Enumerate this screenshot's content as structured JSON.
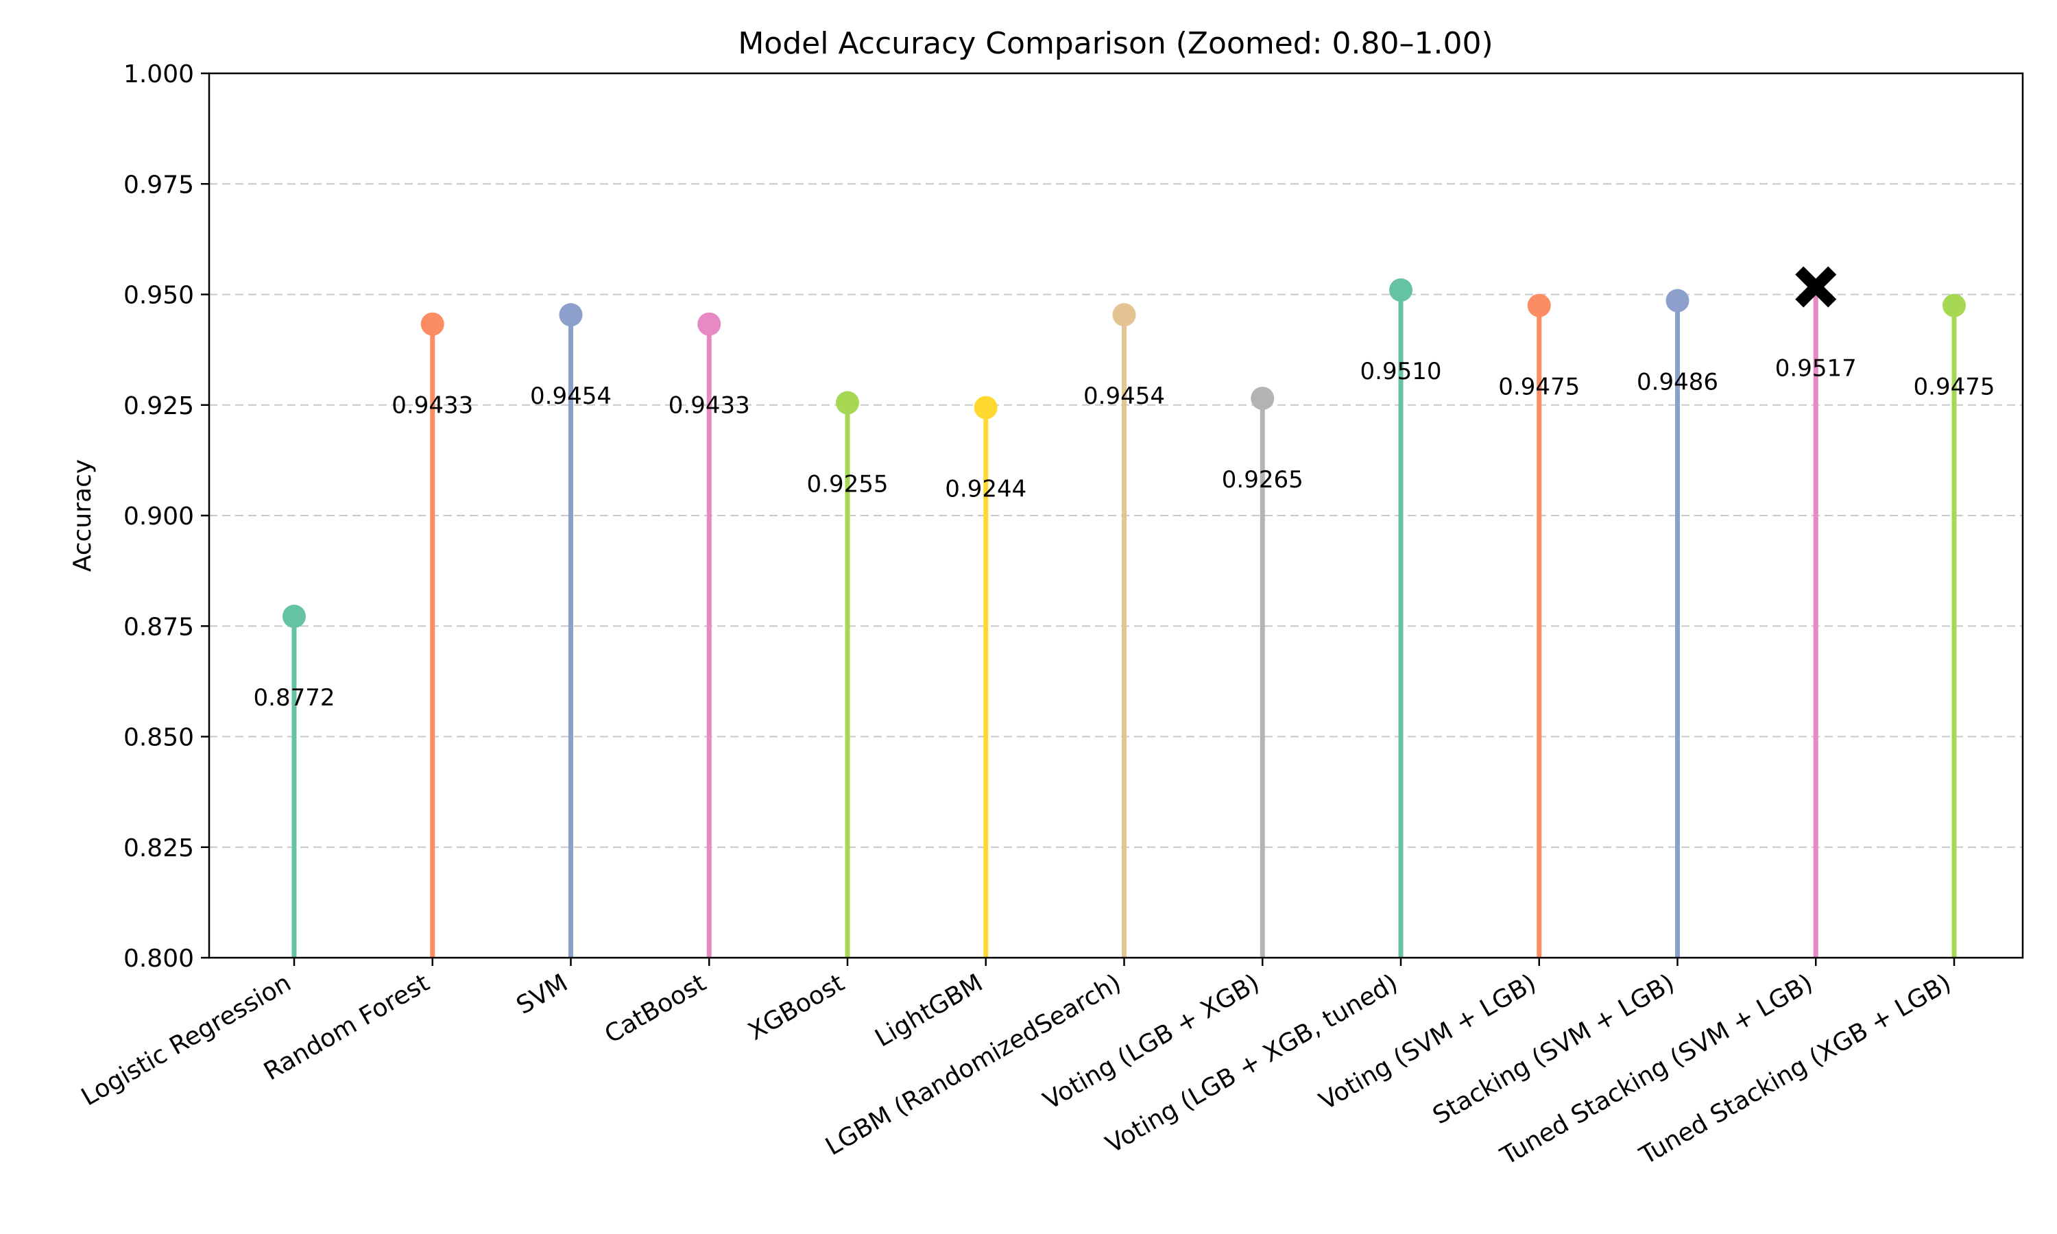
{
  "chart_data": {
    "type": "lollipop",
    "title": "Model Accuracy Comparison (Zoomed: 0.80–1.00)",
    "xlabel": "",
    "ylabel": "Accuracy",
    "ylim": [
      0.8,
      1.0
    ],
    "yticks": [
      "0.800",
      "0.825",
      "0.850",
      "0.875",
      "0.900",
      "0.925",
      "0.950",
      "0.975",
      "1.000"
    ],
    "grid": "y-dashed",
    "categories": [
      "Logistic Regression",
      "Random Forest",
      "SVM",
      "CatBoost",
      "XGBoost",
      "LightGBM",
      "LGBM (RandomizedSearch)",
      "Voting (LGB + XGB)",
      "Voting (LGB + XGB, tuned)",
      "Voting (SVM + LGB)",
      "Stacking (SVM + LGB)",
      "Tuned Stacking (SVM + LGB)",
      "Tuned Stacking (XGB + LGB)"
    ],
    "values": [
      0.8772,
      0.9433,
      0.9454,
      0.9433,
      0.9255,
      0.9244,
      0.9454,
      0.9265,
      0.951,
      0.9475,
      0.9486,
      0.9517,
      0.9475
    ],
    "value_labels": [
      "0.8772",
      "0.9433",
      "0.9454",
      "0.9433",
      "0.9255",
      "0.9244",
      "0.9454",
      "0.9265",
      "0.9510",
      "0.9475",
      "0.9486",
      "0.9517",
      "0.9475"
    ],
    "colors": [
      "#66c2a5",
      "#fc8d62",
      "#8da0cb",
      "#e78ac3",
      "#a6d854",
      "#ffd92f",
      "#e5c494",
      "#b3b3b3",
      "#66c2a5",
      "#fc8d62",
      "#8da0cb",
      "#e78ac3",
      "#a6d854"
    ],
    "best_index": 11,
    "best_marker": "black X"
  }
}
